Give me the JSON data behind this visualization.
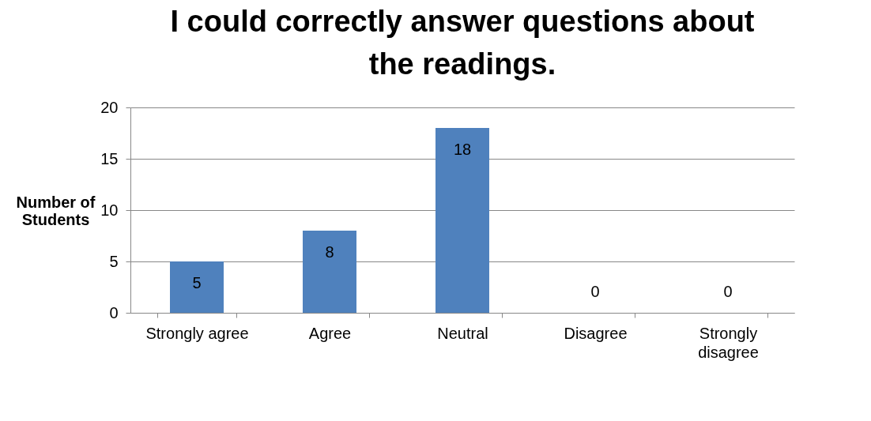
{
  "chart_data": {
    "type": "bar",
    "title": "I could correctly answer questions about the readings.",
    "ylabel": "Number of Students",
    "categories": [
      "Strongly agree",
      "Agree",
      "Neutral",
      "Disagree",
      "Strongly disagree"
    ],
    "values": [
      5,
      8,
      18,
      0,
      0
    ],
    "color": "#4f81bd",
    "ylim": [
      0,
      20
    ],
    "yticks": [
      0,
      5,
      10,
      15,
      20
    ],
    "grid": "y",
    "data_labels": true
  }
}
